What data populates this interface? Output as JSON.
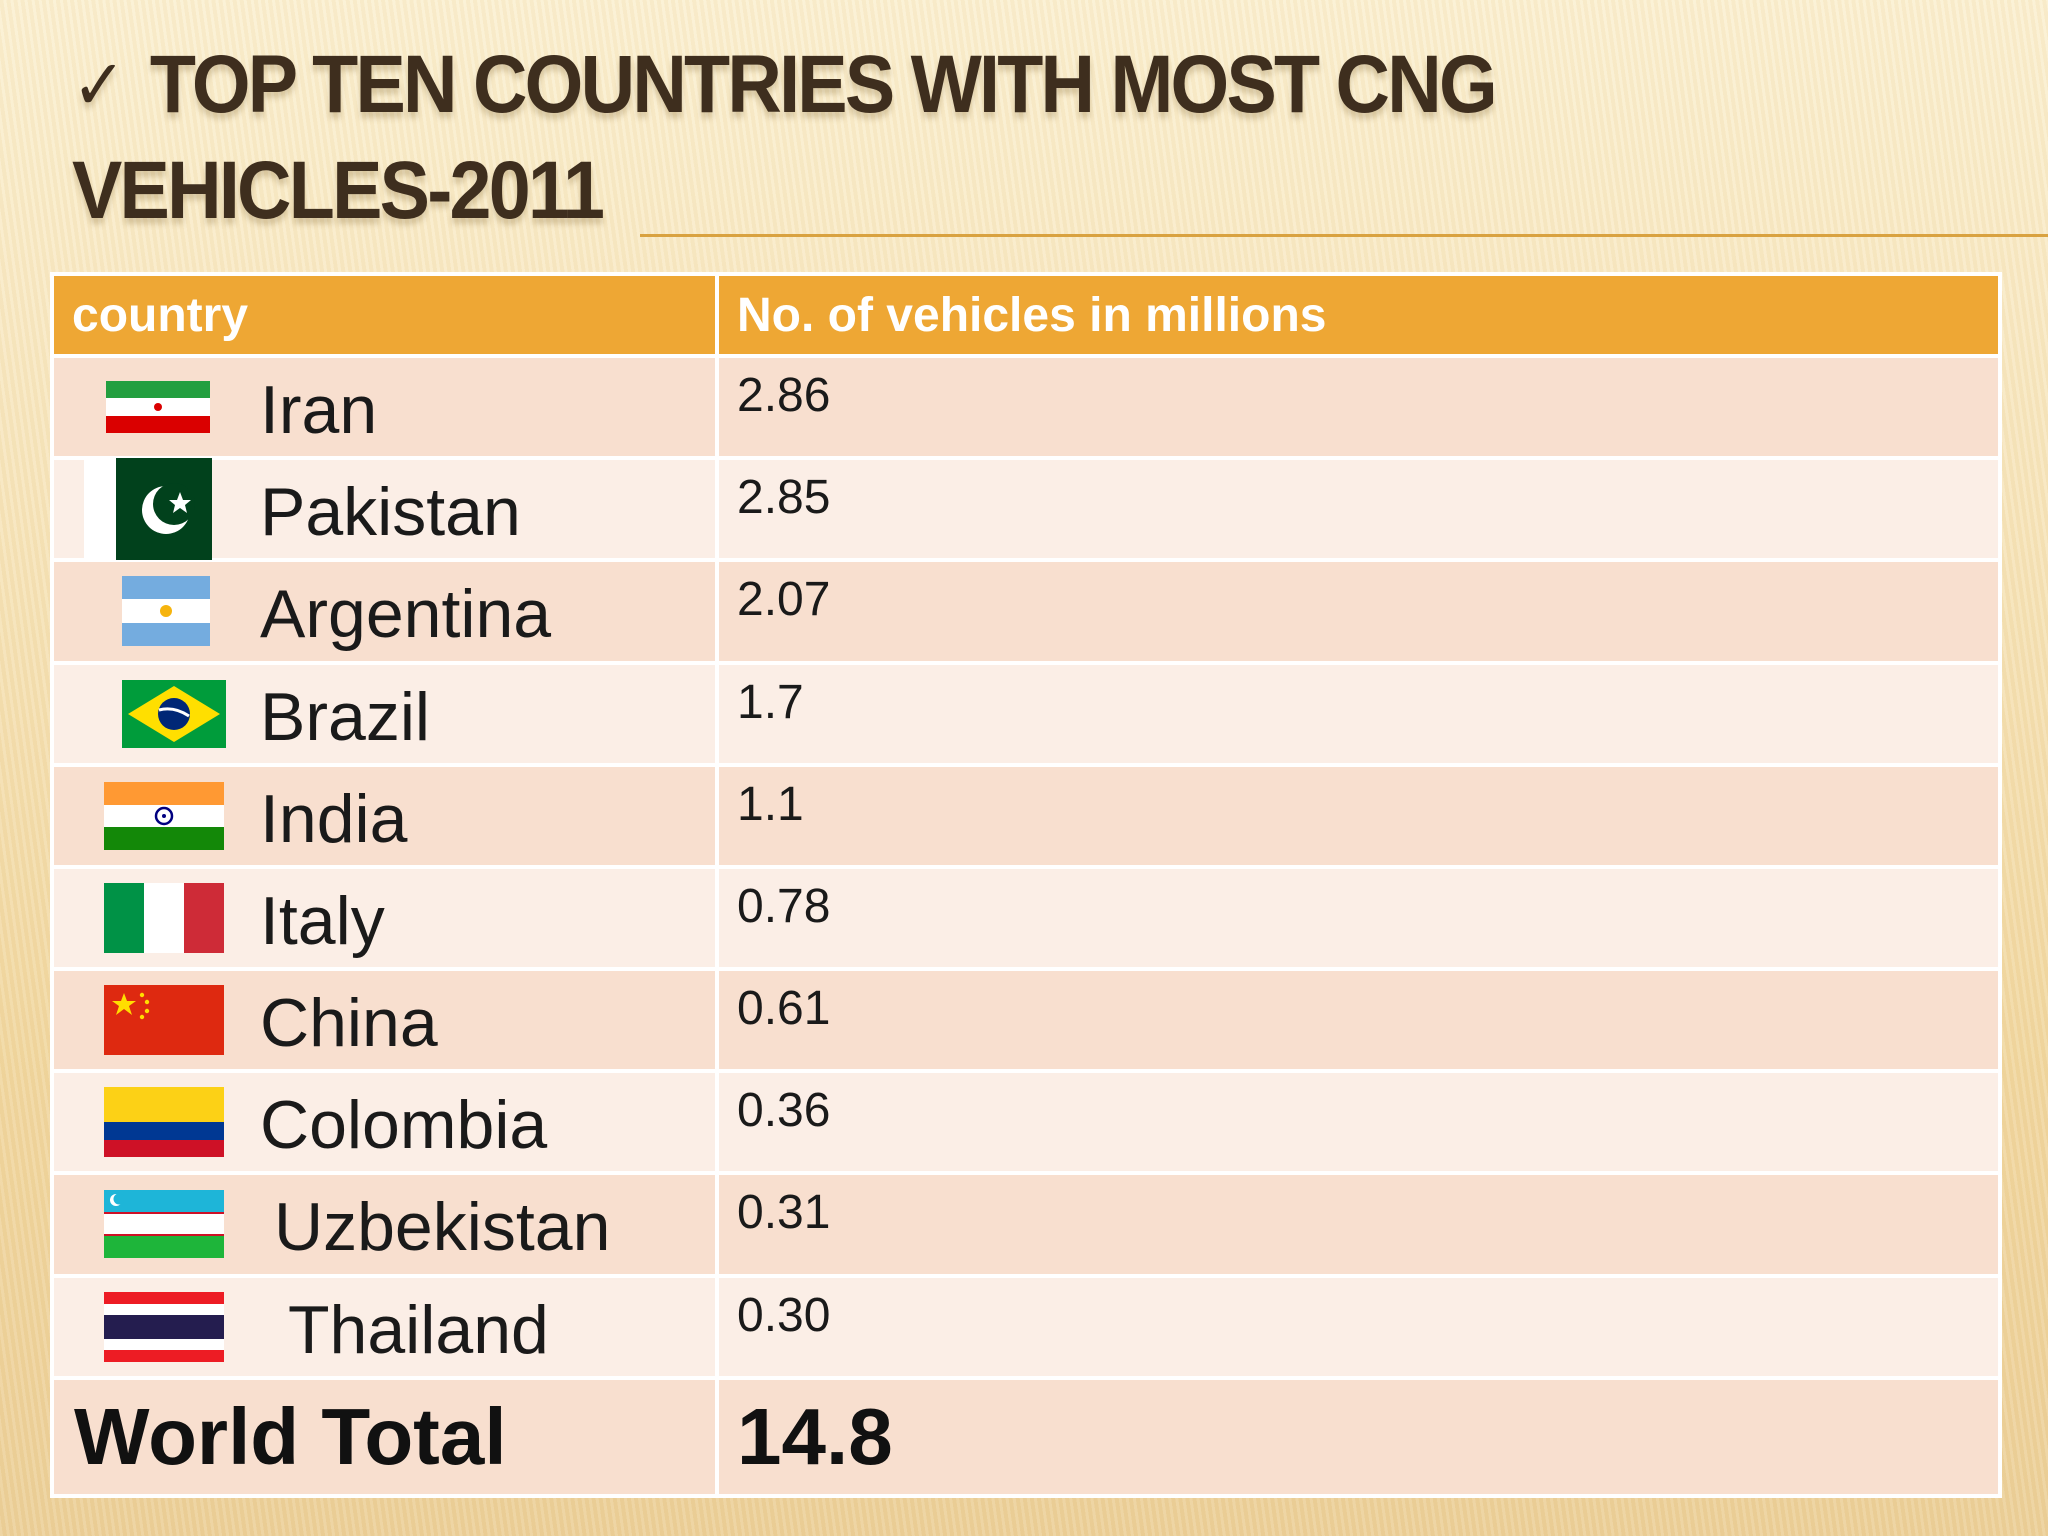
{
  "slide": {
    "title_line1": "Top ten countries with most CNG",
    "title_line2": "vehicles-2011",
    "check_icon": "checkmark-icon"
  },
  "table": {
    "headers": {
      "country": "country",
      "vehicles": "No. of vehicles in millions"
    },
    "header_color": "#eea734",
    "rows": [
      {
        "country": "Iran",
        "value": "2.86",
        "flag": "iran-flag-icon"
      },
      {
        "country": "Pakistan",
        "value": "2.85",
        "flag": "pakistan-flag-icon"
      },
      {
        "country": "Argentina",
        "value": "2.07",
        "flag": "argentina-flag-icon"
      },
      {
        "country": "Brazil",
        "value": "1.7",
        "flag": "brazil-flag-icon"
      },
      {
        "country": "India",
        "value": "1.1",
        "flag": "india-flag-icon"
      },
      {
        "country": "Italy",
        "value": "0.78",
        "flag": "italy-flag-icon"
      },
      {
        "country": "China",
        "value": "0.61",
        "flag": "china-flag-icon"
      },
      {
        "country": "Colombia",
        "value": "0.36",
        "flag": "colombia-flag-icon"
      },
      {
        "country": "Uzbekistan",
        "value": "0.31",
        "flag": "uzbekistan-flag-icon"
      },
      {
        "country": "Thailand",
        "value": "0.30",
        "flag": "thailand-flag-icon"
      }
    ],
    "total": {
      "label": "World Total",
      "value": "14.8"
    }
  }
}
